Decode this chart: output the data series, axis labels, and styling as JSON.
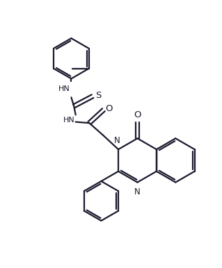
{
  "background_color": "#ffffff",
  "line_color": "#1a1a2e",
  "line_width": 1.6,
  "figsize": [
    3.19,
    3.86
  ],
  "dpi": 100,
  "xlim": [
    0,
    10
  ],
  "ylim": [
    0,
    12
  ]
}
